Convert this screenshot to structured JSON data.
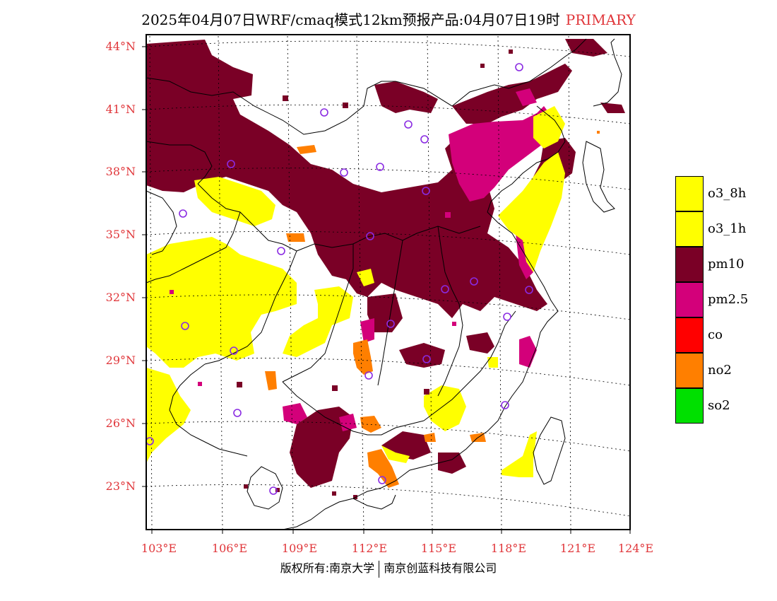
{
  "title": {
    "main": "2025年04月07日WRF/cmaq模式12km预报产品:04月07日19时",
    "tag": "PRIMARY"
  },
  "axes": {
    "lat_labels": [
      "44°N",
      "41°N",
      "38°N",
      "35°N",
      "32°N",
      "29°N",
      "26°N",
      "23°N"
    ],
    "lon_labels": [
      "103°E",
      "106°E",
      "109°E",
      "112°E",
      "115°E",
      "118°E",
      "121°E",
      "124°E"
    ]
  },
  "legend": [
    {
      "label": "o3_8h",
      "color": "#ffff00"
    },
    {
      "label": "o3_1h",
      "color": "#ffff00"
    },
    {
      "label": "pm10",
      "color": "#7a0026"
    },
    {
      "label": "pm2.5",
      "color": "#d3007a"
    },
    {
      "label": "co",
      "color": "#ff0000"
    },
    {
      "label": "no2",
      "color": "#ff7f00"
    },
    {
      "label": "so2",
      "color": "#00e000"
    }
  ],
  "footer": {
    "left": "版权所有:南京大学",
    "right": "南京创蓝科技有限公司"
  },
  "colors": {
    "label_red": "#e0363a",
    "station_marker": "#8a2be2"
  }
}
